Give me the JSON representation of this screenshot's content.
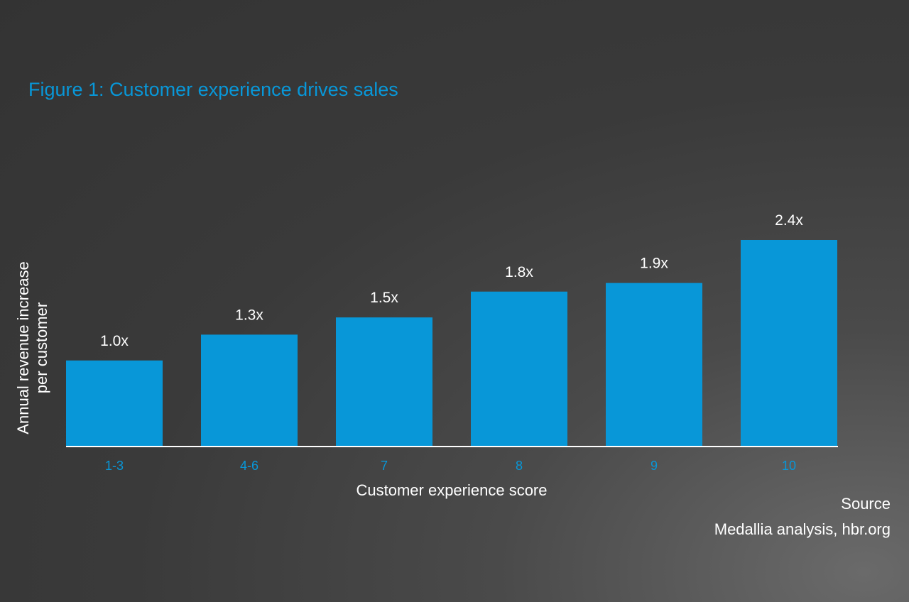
{
  "chart_data": {
    "type": "bar",
    "title": "Figure 1: Customer experience drives sales",
    "xlabel": "Customer experience score",
    "ylabel_lines": [
      "Annual revenue increase",
      "per customer"
    ],
    "categories": [
      "1-3",
      "4-6",
      "7",
      "8",
      "9",
      "10"
    ],
    "values": [
      1.0,
      1.3,
      1.5,
      1.8,
      1.9,
      2.4
    ],
    "value_labels": [
      "1.0x",
      "1.3x",
      "1.5x",
      "1.8x",
      "1.9x",
      "2.4x"
    ],
    "ylim": [
      0,
      2.4
    ],
    "grid": false,
    "legend": "none"
  },
  "source": {
    "heading": "Source",
    "text": "Medallia analysis, hbr.org"
  },
  "colors": {
    "accent": "#0897d8",
    "text": "#ffffff",
    "axis": "#ffffff"
  }
}
